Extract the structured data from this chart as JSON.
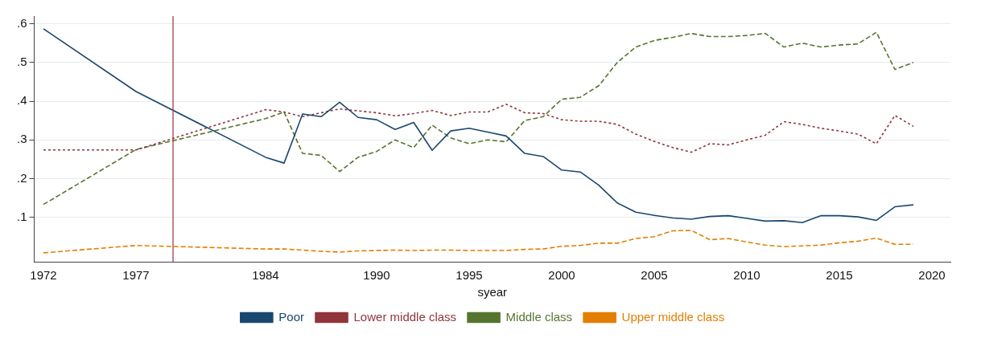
{
  "chart_data": {
    "type": "line",
    "xlabel": "syear",
    "x": [
      1972,
      1977,
      1984,
      1985,
      1986,
      1987,
      1988,
      1989,
      1990,
      1991,
      1992,
      1993,
      1994,
      1995,
      1996,
      1997,
      1998,
      1999,
      2000,
      2001,
      2002,
      2003,
      2004,
      2005,
      2006,
      2007,
      2008,
      2009,
      2010,
      2011,
      2012,
      2013,
      2014,
      2015,
      2016,
      2017,
      2018,
      2019
    ],
    "series": [
      {
        "name": "Poor",
        "color": "#1a476f",
        "line_style": "solid",
        "values": [
          0.587,
          0.425,
          0.255,
          0.24,
          0.367,
          0.36,
          0.397,
          0.358,
          0.352,
          0.327,
          0.345,
          0.273,
          0.323,
          0.33,
          0.32,
          0.31,
          0.265,
          0.257,
          0.222,
          0.217,
          0.183,
          0.137,
          0.113,
          0.105,
          0.098,
          0.095,
          0.102,
          0.104,
          0.097,
          0.09,
          0.091,
          0.086,
          0.104,
          0.104,
          0.101,
          0.092,
          0.127,
          0.132
        ]
      },
      {
        "name": "Lower middle class",
        "color": "#90353b",
        "line_style": "dotted",
        "values": [
          0.274,
          0.274,
          0.378,
          0.372,
          0.36,
          0.37,
          0.38,
          0.375,
          0.37,
          0.362,
          0.368,
          0.376,
          0.363,
          0.372,
          0.372,
          0.392,
          0.37,
          0.368,
          0.352,
          0.348,
          0.348,
          0.34,
          0.315,
          0.296,
          0.28,
          0.268,
          0.29,
          0.287,
          0.3,
          0.312,
          0.347,
          0.34,
          0.33,
          0.323,
          0.315,
          0.29,
          0.363,
          0.335
        ]
      },
      {
        "name": "Middle class",
        "color": "#55752f",
        "line_style": "dashed",
        "values": [
          0.133,
          0.275,
          0.355,
          0.372,
          0.265,
          0.26,
          0.218,
          0.255,
          0.27,
          0.3,
          0.28,
          0.338,
          0.305,
          0.29,
          0.3,
          0.295,
          0.35,
          0.36,
          0.405,
          0.41,
          0.44,
          0.5,
          0.54,
          0.557,
          0.565,
          0.575,
          0.567,
          0.567,
          0.57,
          0.575,
          0.54,
          0.55,
          0.54,
          0.545,
          0.548,
          0.578,
          0.482,
          0.5
        ]
      },
      {
        "name": "Upper middle class",
        "color": "#e37e00",
        "line_style": "dashed",
        "values": [
          0.008,
          0.027,
          0.018,
          0.018,
          0.015,
          0.012,
          0.01,
          0.013,
          0.014,
          0.015,
          0.014,
          0.015,
          0.015,
          0.014,
          0.014,
          0.014,
          0.017,
          0.018,
          0.025,
          0.027,
          0.033,
          0.033,
          0.045,
          0.05,
          0.065,
          0.066,
          0.042,
          0.045,
          0.036,
          0.028,
          0.024,
          0.026,
          0.028,
          0.034,
          0.038,
          0.046,
          0.03,
          0.03
        ]
      }
    ],
    "xlim": [
      1971.5,
      2021
    ],
    "xticks": [
      1972,
      1977,
      1984,
      1990,
      1995,
      2000,
      2005,
      2010,
      2015,
      2020
    ],
    "ylim": [
      -0.015,
      0.62
    ],
    "yticks": [
      {
        "value": 0.1,
        "label": ".1"
      },
      {
        "value": 0.2,
        "label": ".2"
      },
      {
        "value": 0.3,
        "label": ".3"
      },
      {
        "value": 0.4,
        "label": ".4"
      },
      {
        "value": 0.5,
        "label": ".5"
      },
      {
        "value": 0.6,
        "label": ".6"
      }
    ],
    "ref_lines": [
      {
        "axis": "x",
        "value": 1979,
        "color": "#a0404f"
      }
    ],
    "grid": "y",
    "legend": "bottom",
    "marker": "none"
  }
}
